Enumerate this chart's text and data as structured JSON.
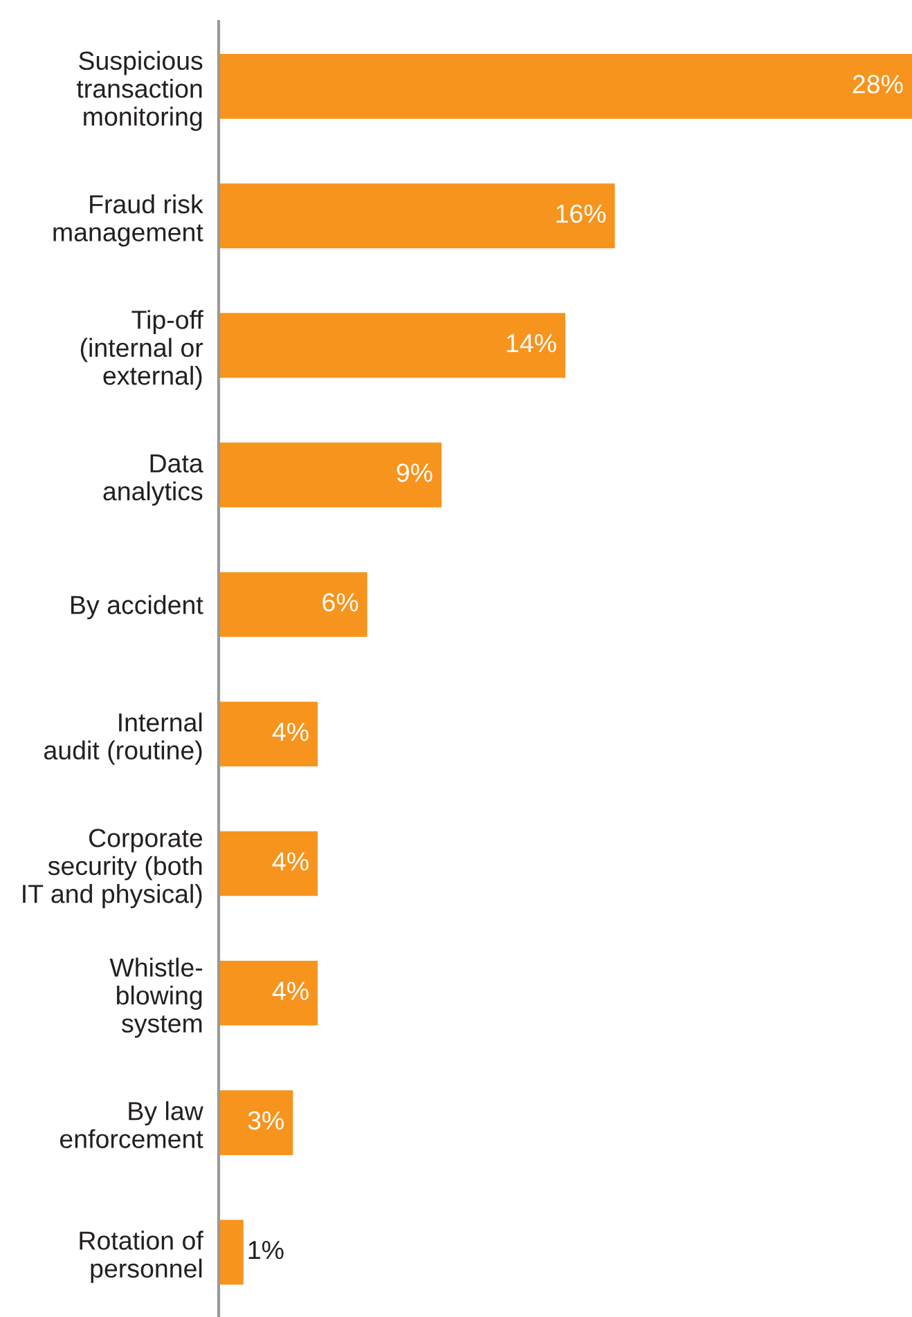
{
  "chart_data": {
    "type": "bar",
    "orientation": "horizontal",
    "categories": [
      "Suspicious\ntransaction\nmonitoring",
      "Fraud risk\nmanagement",
      "Tip-off\n(internal or\nexternal)",
      "Data\nanalytics",
      "By accident",
      "Internal\naudit (routine)",
      "Corporate\nsecurity (both\nIT and physical)",
      "Whistle-\nblowing\nsystem",
      "By law\nenforcement",
      "Rotation of\npersonnel"
    ],
    "values": [
      28,
      16,
      14,
      9,
      6,
      4,
      4,
      4,
      3,
      1
    ],
    "value_labels": [
      "28%",
      "16%",
      "14%",
      "9%",
      "6%",
      "4%",
      "4%",
      "4%",
      "3%",
      "1%"
    ],
    "color": "#f7941d",
    "grid": false,
    "legend": false,
    "tick_labels": "y"
  }
}
